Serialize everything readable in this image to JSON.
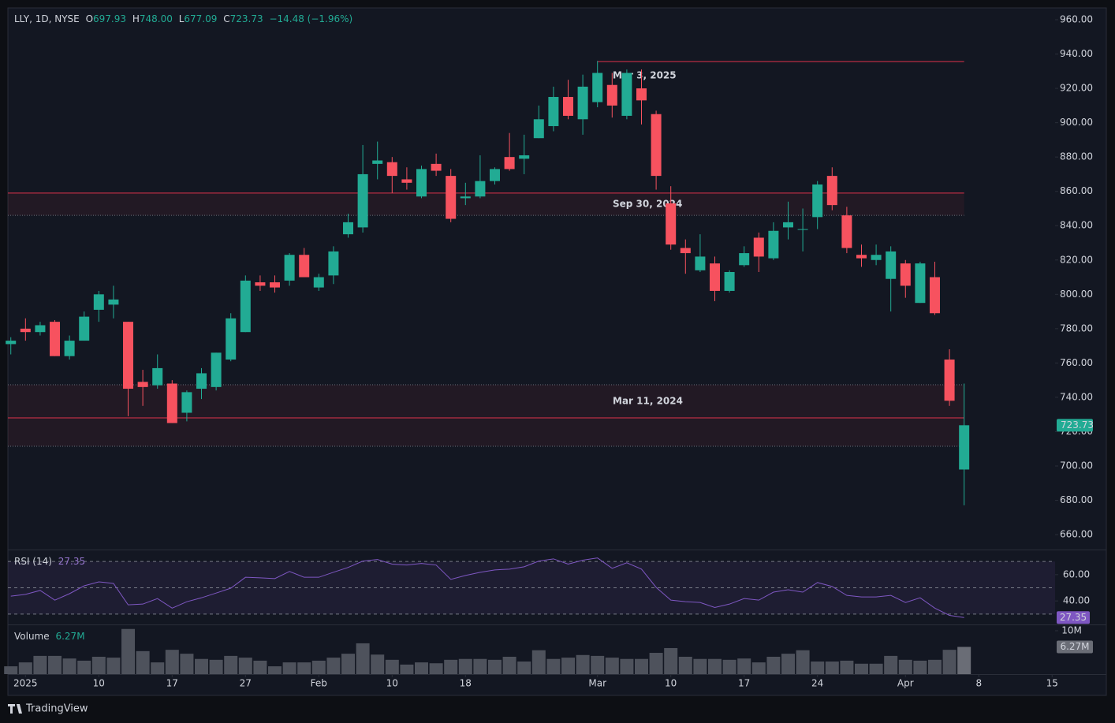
{
  "header": {
    "symbol": "LLY, 1D, NYSE",
    "fields": [
      {
        "key": "O",
        "text": "697.93"
      },
      {
        "key": "H",
        "text": "748.00"
      },
      {
        "key": "L",
        "text": "677.09"
      },
      {
        "key": "C",
        "text": "723.73"
      }
    ],
    "change": "−14.48 (−1.96%)"
  },
  "chart_data": {
    "type": "candlestick",
    "up_color": "#22ab94",
    "down_color": "#f7525f",
    "xlim": [
      -0.2,
      71.2
    ],
    "xticks": [
      {
        "value": 1,
        "label": "2025"
      },
      {
        "value": 6,
        "label": "10"
      },
      {
        "value": 11,
        "label": "17"
      },
      {
        "value": 16,
        "label": "27"
      },
      {
        "value": 21,
        "label": "Feb"
      },
      {
        "value": 26,
        "label": "10"
      },
      {
        "value": 31,
        "label": "18"
      },
      {
        "value": 40,
        "label": "Mar"
      },
      {
        "value": 45,
        "label": "10"
      },
      {
        "value": 50,
        "label": "17"
      },
      {
        "value": 55,
        "label": "24"
      },
      {
        "value": 61,
        "label": "Apr"
      },
      {
        "value": 66,
        "label": "8"
      },
      {
        "value": 71,
        "label": "15"
      }
    ],
    "ylim": [
      651.3,
      966.9
    ],
    "yticks": [
      {
        "value": 660,
        "label": "660.00"
      },
      {
        "value": 680,
        "label": "680.00"
      },
      {
        "value": 700,
        "label": "700.00"
      },
      {
        "value": 720,
        "label": "720.00"
      },
      {
        "value": 740,
        "label": "740.00"
      },
      {
        "value": 760,
        "label": "760.00"
      },
      {
        "value": 780,
        "label": "780.00"
      },
      {
        "value": 800,
        "label": "800.00"
      },
      {
        "value": 820,
        "label": "820.00"
      },
      {
        "value": 840,
        "label": "840.00"
      },
      {
        "value": 860,
        "label": "860.00"
      },
      {
        "value": 880,
        "label": "880.00"
      },
      {
        "value": 900,
        "label": "900.00"
      },
      {
        "value": 920,
        "label": "920.00"
      },
      {
        "value": 940,
        "label": "940.00"
      },
      {
        "value": 960,
        "label": "960.00"
      }
    ],
    "candles": [
      {
        "o": 771,
        "h": 775,
        "l": 765,
        "c": 773
      },
      {
        "o": 780,
        "h": 786,
        "l": 773,
        "c": 778
      },
      {
        "o": 778,
        "h": 784,
        "l": 776,
        "c": 782
      },
      {
        "o": 784,
        "h": 785,
        "l": 764,
        "c": 764
      },
      {
        "o": 764,
        "h": 776,
        "l": 762,
        "c": 773
      },
      {
        "o": 773,
        "h": 790,
        "l": 773,
        "c": 787
      },
      {
        "o": 791,
        "h": 802,
        "l": 784,
        "c": 800
      },
      {
        "o": 794,
        "h": 805,
        "l": 786,
        "c": 797
      },
      {
        "o": 784,
        "h": 784,
        "l": 729,
        "c": 745
      },
      {
        "o": 749,
        "h": 756,
        "l": 735,
        "c": 746
      },
      {
        "o": 747,
        "h": 765,
        "l": 745,
        "c": 757
      },
      {
        "o": 748,
        "h": 750,
        "l": 725,
        "c": 725
      },
      {
        "o": 731,
        "h": 744,
        "l": 726,
        "c": 743
      },
      {
        "o": 745,
        "h": 757,
        "l": 739,
        "c": 754
      },
      {
        "o": 746,
        "h": 766,
        "l": 744,
        "c": 766
      },
      {
        "o": 762,
        "h": 789,
        "l": 761,
        "c": 786
      },
      {
        "o": 778,
        "h": 811,
        "l": 778,
        "c": 808
      },
      {
        "o": 807,
        "h": 811,
        "l": 802,
        "c": 805
      },
      {
        "o": 807,
        "h": 811,
        "l": 801,
        "c": 804
      },
      {
        "o": 808,
        "h": 824,
        "l": 805,
        "c": 823
      },
      {
        "o": 823,
        "h": 827,
        "l": 810,
        "c": 810
      },
      {
        "o": 804,
        "h": 812,
        "l": 802,
        "c": 810
      },
      {
        "o": 811,
        "h": 828,
        "l": 806,
        "c": 825
      },
      {
        "o": 835,
        "h": 847,
        "l": 833,
        "c": 842
      },
      {
        "o": 839,
        "h": 887,
        "l": 836,
        "c": 870
      },
      {
        "o": 876,
        "h": 889,
        "l": 867,
        "c": 878
      },
      {
        "o": 877,
        "h": 880,
        "l": 859,
        "c": 869
      },
      {
        "o": 867,
        "h": 874,
        "l": 861,
        "c": 865
      },
      {
        "o": 857,
        "h": 875,
        "l": 856,
        "c": 873
      },
      {
        "o": 876,
        "h": 882,
        "l": 869,
        "c": 872
      },
      {
        "o": 869,
        "h": 873,
        "l": 842,
        "c": 844
      },
      {
        "o": 856,
        "h": 865,
        "l": 852,
        "c": 857
      },
      {
        "o": 857,
        "h": 881,
        "l": 856,
        "c": 866
      },
      {
        "o": 866,
        "h": 874,
        "l": 864,
        "c": 873
      },
      {
        "o": 880,
        "h": 894,
        "l": 872,
        "c": 873
      },
      {
        "o": 879,
        "h": 893,
        "l": 870,
        "c": 881
      },
      {
        "o": 891,
        "h": 910,
        "l": 891,
        "c": 902
      },
      {
        "o": 898,
        "h": 921,
        "l": 895,
        "c": 915
      },
      {
        "o": 915,
        "h": 925,
        "l": 902,
        "c": 904
      },
      {
        "o": 902,
        "h": 928,
        "l": 893,
        "c": 921
      },
      {
        "o": 912,
        "h": 936,
        "l": 909,
        "c": 929
      },
      {
        "o": 922,
        "h": 929,
        "l": 903,
        "c": 910
      },
      {
        "o": 904,
        "h": 931,
        "l": 902,
        "c": 929
      },
      {
        "o": 920,
        "h": 931,
        "l": 899,
        "c": 913
      },
      {
        "o": 905,
        "h": 907,
        "l": 861,
        "c": 869
      },
      {
        "o": 853,
        "h": 863,
        "l": 826,
        "c": 829
      },
      {
        "o": 827,
        "h": 832,
        "l": 812,
        "c": 824
      },
      {
        "o": 814,
        "h": 835,
        "l": 813,
        "c": 822
      },
      {
        "o": 818,
        "h": 822,
        "l": 796,
        "c": 802
      },
      {
        "o": 802,
        "h": 814,
        "l": 801,
        "c": 813
      },
      {
        "o": 817,
        "h": 828,
        "l": 816,
        "c": 824
      },
      {
        "o": 833,
        "h": 836,
        "l": 813,
        "c": 822
      },
      {
        "o": 821,
        "h": 842,
        "l": 820,
        "c": 837
      },
      {
        "o": 839,
        "h": 854,
        "l": 832,
        "c": 842
      },
      {
        "o": 838,
        "h": 850,
        "l": 825,
        "c": 838
      },
      {
        "o": 845,
        "h": 866,
        "l": 838,
        "c": 864
      },
      {
        "o": 869,
        "h": 874,
        "l": 849,
        "c": 852
      },
      {
        "o": 846,
        "h": 851,
        "l": 824,
        "c": 827
      },
      {
        "o": 823,
        "h": 829,
        "l": 816,
        "c": 821
      },
      {
        "o": 820,
        "h": 829,
        "l": 817,
        "c": 823
      },
      {
        "o": 809,
        "h": 828,
        "l": 790,
        "c": 825
      },
      {
        "o": 818,
        "h": 820,
        "l": 798,
        "c": 805
      },
      {
        "o": 795,
        "h": 819,
        "l": 795,
        "c": 818
      },
      {
        "o": 810,
        "h": 819,
        "l": 788,
        "c": 789
      },
      {
        "o": 762,
        "h": 768,
        "l": 735,
        "c": 738
      },
      {
        "o": 697.93,
        "h": 748,
        "l": 677.09,
        "c": 723.73
      }
    ],
    "levels": [
      {
        "label": "Mar 3, 2025",
        "x_start": 40,
        "lines": [
          {
            "value": 935.6,
            "style": "solid"
          }
        ]
      },
      {
        "label": "Sep 30, 2024",
        "lines": [
          {
            "value": 859,
            "style": "solid"
          },
          {
            "value": 846,
            "style": "dotted"
          }
        ]
      },
      {
        "label": "Mar 11, 2024",
        "lines": [
          {
            "value": 747.3,
            "style": "dotted"
          },
          {
            "value": 728,
            "style": "solid"
          },
          {
            "value": 711.5,
            "style": "dotted"
          }
        ]
      }
    ],
    "rsi": {
      "title": "RSI (14)",
      "color": "#7e57c2",
      "ylim": [
        22.1,
        77.3
      ],
      "yticks": [
        {
          "value": 60,
          "label": "60.00"
        },
        {
          "value": 40,
          "label": "40.00"
        }
      ],
      "levels": [
        70,
        50,
        30
      ],
      "values": [
        43.6,
        45,
        48,
        40.6,
        45.5,
        51.5,
        54.5,
        53.3,
        37,
        37.6,
        41.8,
        34.5,
        39.4,
        42.4,
        46,
        49.7,
        58,
        57.6,
        57,
        62.4,
        58,
        58,
        61.8,
        65.5,
        70.3,
        71.5,
        68,
        67.3,
        68.5,
        67.3,
        56.4,
        59.4,
        61.8,
        63.6,
        64.2,
        66,
        70.3,
        72,
        68,
        71,
        72.7,
        64.8,
        69,
        64.2,
        50.3,
        40.6,
        39.4,
        38.8,
        35,
        37.6,
        41.8,
        40.6,
        46.7,
        48.5,
        46.7,
        54,
        51,
        44.2,
        43,
        43,
        44.2,
        38.8,
        42.4,
        34.5,
        29,
        27.35
      ]
    },
    "volume": {
      "title": "Volume",
      "color": "#4e525c",
      "ylim": [
        0,
        10.9
      ],
      "yticks": [
        {
          "value": 10,
          "label": "10M"
        }
      ],
      "value_label": "6.27M",
      "values": [
        1.8,
        2.7,
        4.2,
        4.2,
        3.6,
        3.1,
        4,
        3.8,
        10.4,
        5.3,
        2.7,
        5.6,
        4.7,
        3.5,
        3.3,
        4.2,
        3.8,
        3.1,
        1.8,
        2.7,
        2.7,
        3.1,
        3.8,
        4.7,
        7.1,
        4.5,
        3.3,
        2.2,
        2.7,
        2.5,
        3.3,
        3.5,
        3.5,
        3.3,
        4,
        2.9,
        5.5,
        3.5,
        3.8,
        4.4,
        4.2,
        3.8,
        3.5,
        3.5,
        4.9,
        6,
        4,
        3.5,
        3.5,
        3.3,
        3.6,
        2.7,
        4,
        4.7,
        5.5,
        2.9,
        2.9,
        3.1,
        2.4,
        2.4,
        4.2,
        3.3,
        3.1,
        3.3,
        5.6,
        6.27
      ]
    }
  },
  "footer": {
    "brand": "TradingView"
  }
}
